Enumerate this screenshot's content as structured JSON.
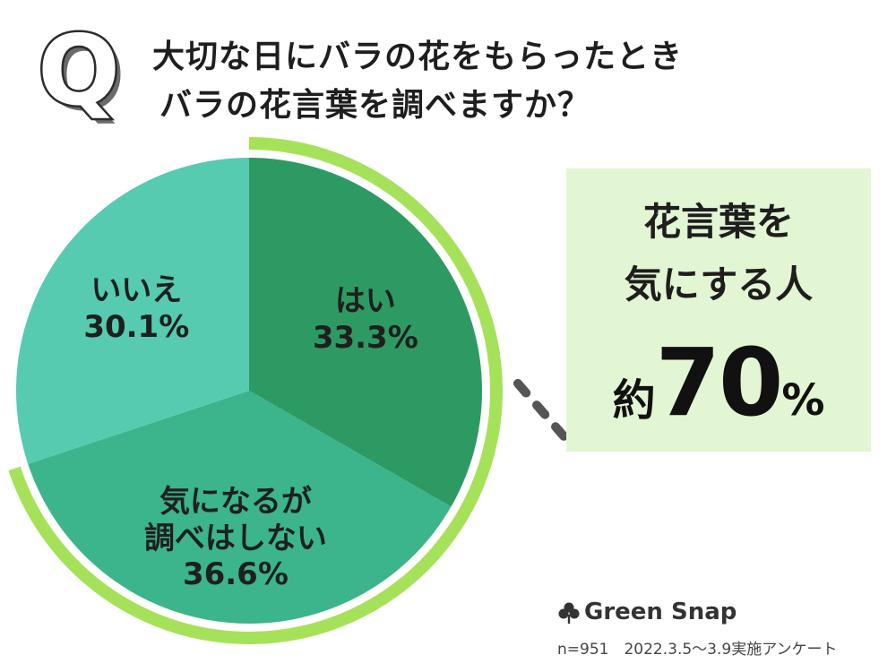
{
  "header": {
    "q_letter": "Q",
    "question_line1": "大切な日にバラの花をもらったとき",
    "question_line2": "バラの花言葉を調べますか？"
  },
  "chart_data": {
    "type": "pie",
    "slices": [
      {
        "label_lines": [
          "はい"
        ],
        "value": 33.3,
        "value_text": "33.3%",
        "color": "#2e9a63"
      },
      {
        "label_lines": [
          "気になるが",
          "調べはしない"
        ],
        "value": 36.6,
        "value_text": "36.6%",
        "color": "#3cb48c"
      },
      {
        "label_lines": [
          "いいえ"
        ],
        "value": 30.1,
        "value_text": "30.1%",
        "color": "#56cbb0"
      }
    ],
    "highlight_arc_color": "#a6e15a"
  },
  "callout": {
    "line1": "花言葉を",
    "line2": "気にする人",
    "approx": "約",
    "value": "70",
    "unit": "%",
    "background": "#e3f6d4"
  },
  "footer": {
    "brand": "Green Snap",
    "note": "n=951　2022.3.5～3.9実施アンケート"
  }
}
